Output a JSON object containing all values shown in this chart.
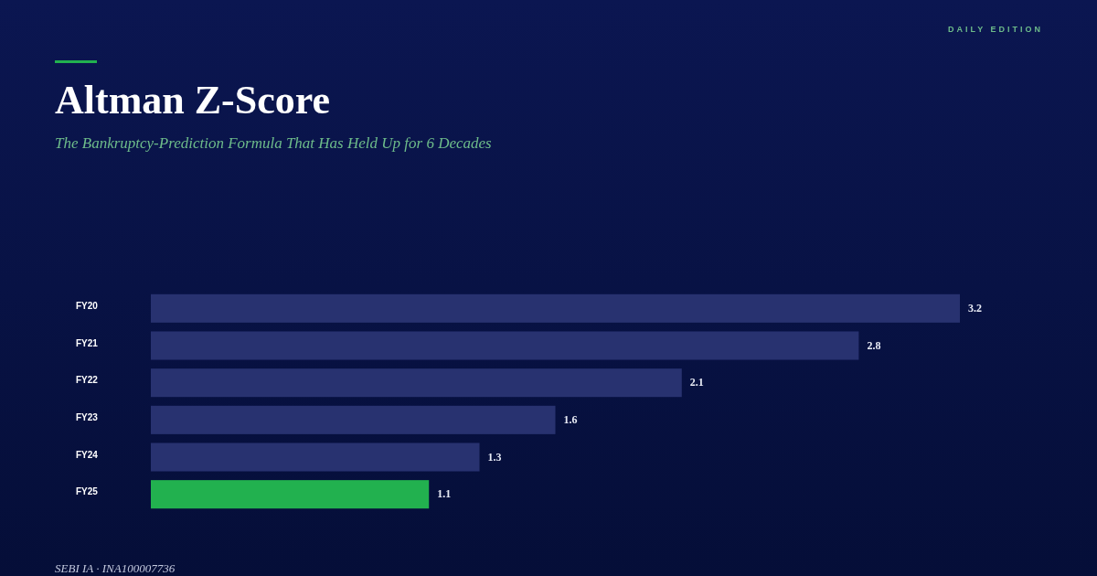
{
  "chart_data": {
    "type": "bar",
    "orientation": "horizontal",
    "title": "Altman Z-Score",
    "subtitle": "The Bankruptcy-Prediction Formula That Has Held Up for 6 Decades",
    "categories": [
      "FY20",
      "FY21",
      "FY22",
      "FY23",
      "FY24",
      "FY25"
    ],
    "values": [
      3.2,
      2.8,
      2.1,
      1.6,
      1.3,
      1.1
    ],
    "colors": [
      "#283270",
      "#283270",
      "#283270",
      "#283270",
      "#283270",
      "#22b14f"
    ],
    "xlim": [
      0,
      3.2
    ],
    "data_labels": true,
    "tick_labels": "y",
    "annotations": [
      "DAILY EDITION",
      "SEBI IA · INA100007736"
    ]
  }
}
